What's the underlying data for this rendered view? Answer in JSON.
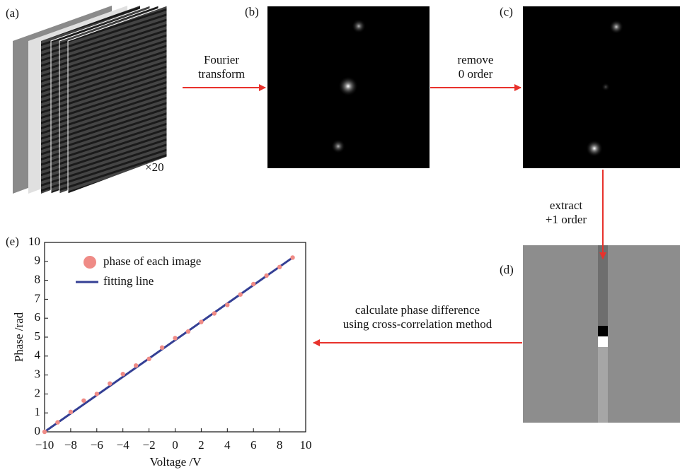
{
  "panels": {
    "a": {
      "label": "(a)",
      "multiplier": "×20"
    },
    "b": {
      "label": "(b)"
    },
    "c": {
      "label": "(c)"
    },
    "d": {
      "label": "(d)"
    },
    "e": {
      "label": "(e)"
    }
  },
  "arrows": [
    {
      "lines": [
        "Fourier",
        "transform"
      ]
    },
    {
      "lines": [
        "remove",
        "0 order"
      ]
    },
    {
      "lines": [
        "extract",
        "+1 order"
      ]
    },
    {
      "lines": [
        "calculate phase difference",
        "using cross-correlation method"
      ]
    }
  ],
  "chart_data": {
    "type": "scatter",
    "xlabel": "Voltage /V",
    "ylabel": "Phase /rad",
    "xlim": [
      -10,
      10
    ],
    "ylim": [
      0,
      10
    ],
    "xticks": [
      {
        "value": -10,
        "label": "−10"
      },
      {
        "value": -8,
        "label": "−8"
      },
      {
        "value": -6,
        "label": "−6"
      },
      {
        "value": -4,
        "label": "−4"
      },
      {
        "value": -2,
        "label": "−2"
      },
      0,
      2,
      4,
      6,
      8,
      10
    ],
    "yticks": [
      0,
      1,
      2,
      3,
      4,
      5,
      6,
      7,
      8,
      9,
      10
    ],
    "legend": "upper left",
    "series": [
      {
        "name": "phase of each image",
        "type": "scatter",
        "color": "#ef8b86",
        "x": [
          -10,
          -9,
          -8,
          -7,
          -6,
          -5,
          -4,
          -3,
          -2,
          -1,
          0,
          1,
          2,
          3,
          4,
          5,
          6,
          7,
          8,
          9
        ],
        "values": [
          0,
          0.5,
          1.05,
          1.65,
          2.0,
          2.55,
          3.05,
          3.5,
          3.85,
          4.45,
          4.95,
          5.3,
          5.8,
          6.25,
          6.7,
          7.25,
          7.8,
          8.25,
          8.7,
          9.2
        ]
      },
      {
        "name": "fitting line",
        "type": "line",
        "color": "#343f94",
        "x": [
          -10,
          9
        ],
        "values": [
          0,
          9.2
        ]
      }
    ]
  }
}
